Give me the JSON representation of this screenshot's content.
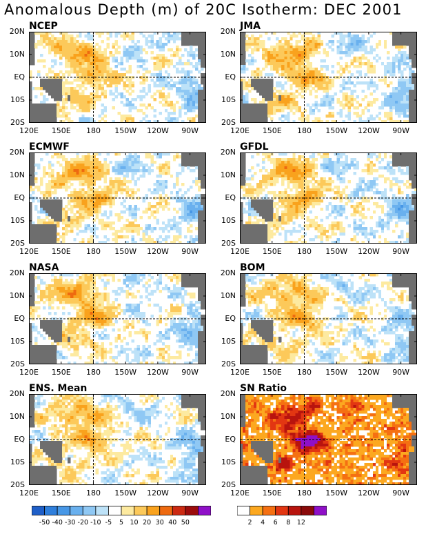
{
  "title": "Anomalous Depth (m) of 20C Isotherm: DEC 2001",
  "axes": {
    "y_labels": [
      "20N",
      "10N",
      "EQ",
      "10S",
      "20S"
    ],
    "x_labels": [
      "120E",
      "150E",
      "180",
      "150W",
      "120W",
      "90W"
    ]
  },
  "panels": [
    {
      "name": "NCEP",
      "kind": "anomaly",
      "seed": 11
    },
    {
      "name": "JMA",
      "kind": "anomaly",
      "seed": 23
    },
    {
      "name": "ECMWF",
      "kind": "anomaly",
      "seed": 37
    },
    {
      "name": "GFDL",
      "kind": "anomaly",
      "seed": 41
    },
    {
      "name": "NASA",
      "kind": "anomaly",
      "seed": 53
    },
    {
      "name": "BOM",
      "kind": "anomaly",
      "seed": 67
    },
    {
      "name": "ENS. Mean",
      "kind": "anomaly",
      "seed": 71
    },
    {
      "name": "SN Ratio",
      "kind": "ratio",
      "seed": 89
    }
  ],
  "anomaly_colorbar": {
    "labels": [
      "-50",
      "-40",
      "-30",
      "-20",
      "-10",
      "-5",
      "5",
      "10",
      "20",
      "30",
      "40",
      "50"
    ],
    "colors": [
      "#1f5fc8",
      "#2f7fdc",
      "#4797e6",
      "#69b0ee",
      "#8fc8f4",
      "#bde2f8",
      "#ffffff",
      "#fdeaa0",
      "#fcc95a",
      "#f9a21d",
      "#ee6a10",
      "#cc2a12",
      "#9c0c0c",
      "#8f10c8"
    ]
  },
  "ratio_colorbar": {
    "labels": [
      "2",
      "4",
      "6",
      "8",
      "12"
    ],
    "colors": [
      "#ffffff",
      "#fca820",
      "#f57012",
      "#e23612",
      "#b8140e",
      "#8a0a0a",
      "#8f10c8"
    ]
  },
  "land_color": "#6e6e6e"
}
